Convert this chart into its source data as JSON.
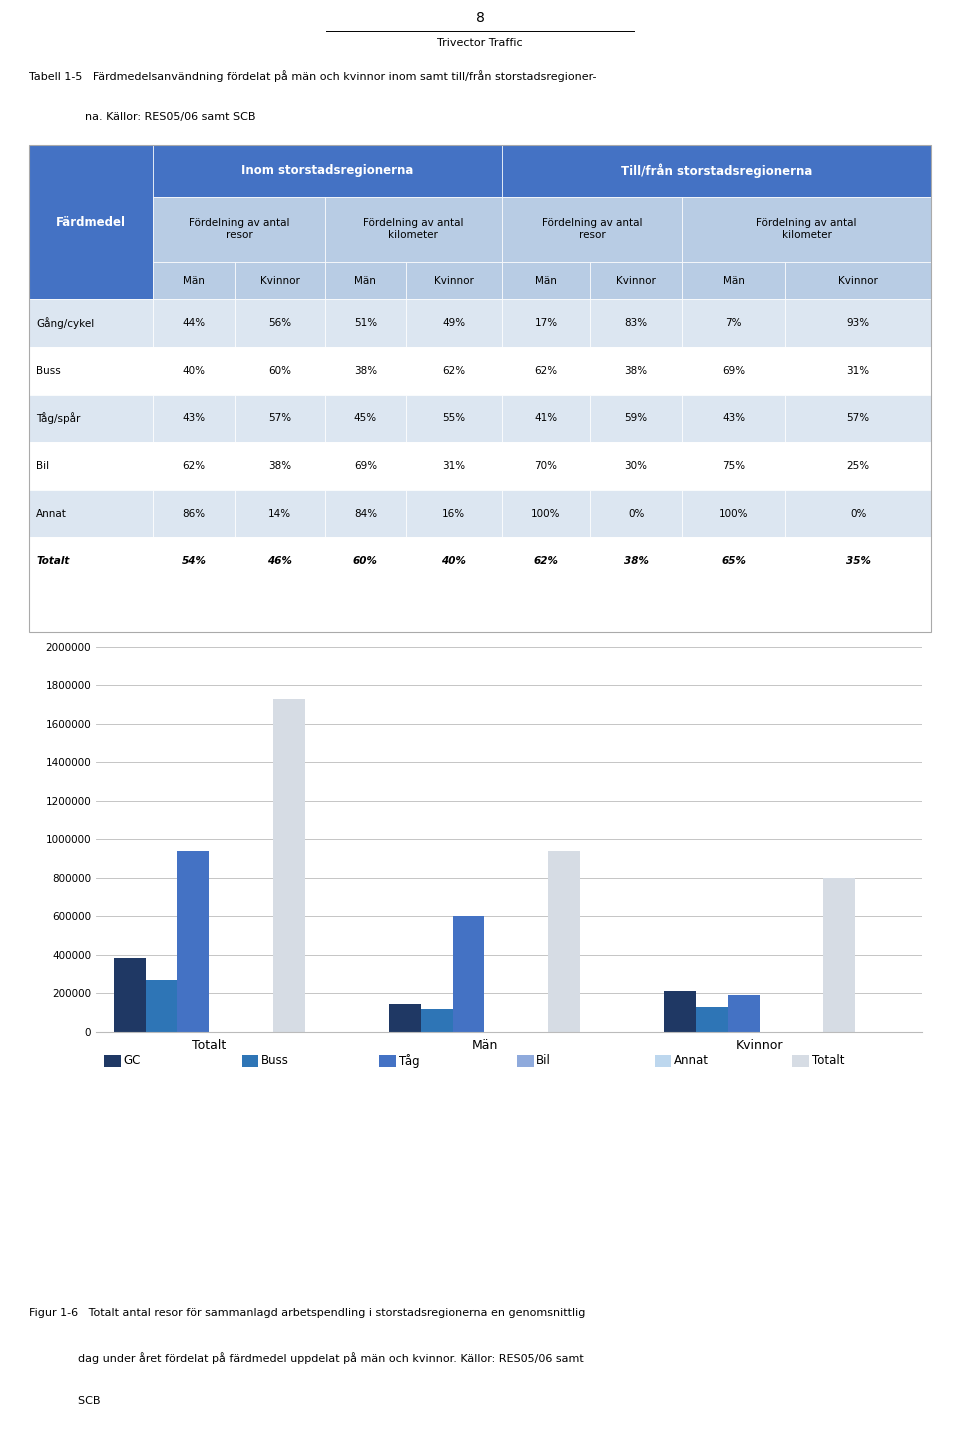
{
  "page_number": "8",
  "page_footer": "Trivector Traffic",
  "table_caption_line1": "Tabell 1-5   Färdmedelsanvändning fördelat på män och kvinnor inom samt till/från storstadsregioner-",
  "table_caption_line2": "                na. Källor: RES05/06 samt SCB",
  "table_rows": [
    [
      "Gång/cykel",
      "44%",
      "56%",
      "51%",
      "49%",
      "17%",
      "83%",
      "7%",
      "93%"
    ],
    [
      "Buss",
      "40%",
      "60%",
      "38%",
      "62%",
      "62%",
      "38%",
      "69%",
      "31%"
    ],
    [
      "Tåg/spår",
      "43%",
      "57%",
      "45%",
      "55%",
      "41%",
      "59%",
      "43%",
      "57%"
    ],
    [
      "Bil",
      "62%",
      "38%",
      "69%",
      "31%",
      "70%",
      "30%",
      "75%",
      "25%"
    ],
    [
      "Annat",
      "86%",
      "14%",
      "84%",
      "16%",
      "100%",
      "0%",
      "100%",
      "0%"
    ],
    [
      "Totalt",
      "54%",
      "46%",
      "60%",
      "40%",
      "62%",
      "38%",
      "65%",
      "35%"
    ]
  ],
  "header_bg_color": "#4472C4",
  "subheader_bg_color": "#B8CCE4",
  "alt_row_bg": "#DCE6F1",
  "white_row_bg": "#FFFFFF",
  "bar_groups": [
    "Totalt",
    "Män",
    "Kvinnor"
  ],
  "bar_categories": [
    "GC",
    "Buss",
    "Tåg",
    "Bil",
    "Annat",
    "Totalt"
  ],
  "bar_colors": [
    "#1F3864",
    "#2E75B6",
    "#4472C4",
    "#8FAADC",
    "#BDD7EE",
    "#D6DCE4"
  ],
  "bar_data": {
    "Totalt": [
      380000,
      270000,
      940000,
      0,
      0,
      1730000
    ],
    "Män": [
      145000,
      120000,
      600000,
      0,
      0,
      940000
    ],
    "Kvinnor": [
      210000,
      130000,
      190000,
      0,
      0,
      800000
    ]
  },
  "y_max": 2000000,
  "y_ticks": [
    0,
    200000,
    400000,
    600000,
    800000,
    1000000,
    1200000,
    1400000,
    1600000,
    1800000,
    2000000
  ],
  "fig_caption_line1": "Figur 1-6   Totalt antal resor för sammanlagd arbetspendling i storstadsregionerna en genomsnittlig",
  "fig_caption_line2": "              dag under året fördelat på färdmedel uppdelat på män och kvinnor. Källor: RES05/06 samt",
  "fig_caption_line3": "              SCB"
}
